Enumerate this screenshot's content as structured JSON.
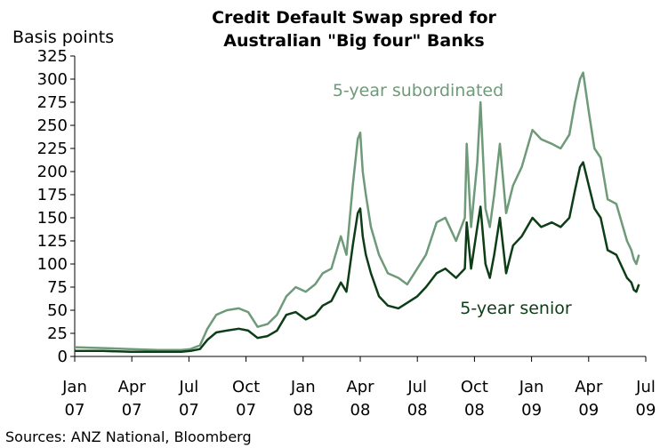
{
  "chart_data": {
    "type": "line",
    "title": [
      "Credit Default Swap spred for",
      "Australian \"Big four\" Banks"
    ],
    "ylabel": "Basis points",
    "ylim": [
      0,
      325
    ],
    "yticks": [
      "0",
      "25",
      "50",
      "75",
      "100",
      "125",
      "150",
      "175",
      "200",
      "225",
      "250",
      "275",
      "300",
      "325"
    ],
    "xlim": [
      "2007-01-01",
      "2009-07-01"
    ],
    "xticks": [
      {
        "top": "Jan",
        "bottom": "07"
      },
      {
        "top": "Apr",
        "bottom": "07"
      },
      {
        "top": "Jul",
        "bottom": "07"
      },
      {
        "top": "Oct",
        "bottom": "07"
      },
      {
        "top": "Jan",
        "bottom": "08"
      },
      {
        "top": "Apr",
        "bottom": "08"
      },
      {
        "top": "Jul",
        "bottom": "08"
      },
      {
        "top": "Oct",
        "bottom": "08"
      },
      {
        "top": "Jan",
        "bottom": "09"
      },
      {
        "top": "Apr",
        "bottom": "09"
      },
      {
        "top": "Jul",
        "bottom": "09"
      }
    ],
    "grid": false,
    "source": "Sources: ANZ National, Bloomberg",
    "series": [
      {
        "name": "5-year subordinated",
        "color": "#6e9a7a",
        "points": [
          [
            "2007-01-01",
            10
          ],
          [
            "2007-02-15",
            9
          ],
          [
            "2007-04-01",
            8
          ],
          [
            "2007-05-15",
            7
          ],
          [
            "2007-06-20",
            7
          ],
          [
            "2007-07-05",
            8
          ],
          [
            "2007-07-20",
            12
          ],
          [
            "2007-08-01",
            30
          ],
          [
            "2007-08-15",
            45
          ],
          [
            "2007-09-01",
            50
          ],
          [
            "2007-09-20",
            52
          ],
          [
            "2007-10-05",
            48
          ],
          [
            "2007-10-20",
            32
          ],
          [
            "2007-11-05",
            35
          ],
          [
            "2007-11-20",
            45
          ],
          [
            "2007-12-05",
            65
          ],
          [
            "2007-12-20",
            75
          ],
          [
            "2008-01-05",
            70
          ],
          [
            "2008-01-20",
            78
          ],
          [
            "2008-02-01",
            90
          ],
          [
            "2008-02-15",
            95
          ],
          [
            "2008-03-01",
            130
          ],
          [
            "2008-03-10",
            110
          ],
          [
            "2008-03-20",
            185
          ],
          [
            "2008-03-28",
            235
          ],
          [
            "2008-04-01",
            242
          ],
          [
            "2008-04-05",
            200
          ],
          [
            "2008-04-10",
            175
          ],
          [
            "2008-04-18",
            140
          ],
          [
            "2008-05-01",
            110
          ],
          [
            "2008-05-15",
            90
          ],
          [
            "2008-06-01",
            85
          ],
          [
            "2008-06-15",
            78
          ],
          [
            "2008-07-01",
            95
          ],
          [
            "2008-07-15",
            110
          ],
          [
            "2008-08-01",
            145
          ],
          [
            "2008-08-15",
            150
          ],
          [
            "2008-09-01",
            125
          ],
          [
            "2008-09-15",
            150
          ],
          [
            "2008-09-18",
            230
          ],
          [
            "2008-09-25",
            140
          ],
          [
            "2008-10-05",
            210
          ],
          [
            "2008-10-10",
            275
          ],
          [
            "2008-10-18",
            160
          ],
          [
            "2008-10-25",
            140
          ],
          [
            "2008-11-01",
            175
          ],
          [
            "2008-11-10",
            230
          ],
          [
            "2008-11-20",
            155
          ],
          [
            "2008-12-01",
            185
          ],
          [
            "2008-12-15",
            205
          ],
          [
            "2009-01-01",
            245
          ],
          [
            "2009-01-15",
            235
          ],
          [
            "2009-02-01",
            230
          ],
          [
            "2009-02-15",
            225
          ],
          [
            "2009-03-01",
            240
          ],
          [
            "2009-03-10",
            275
          ],
          [
            "2009-03-18",
            300
          ],
          [
            "2009-03-23",
            307
          ],
          [
            "2009-04-01",
            265
          ],
          [
            "2009-04-10",
            225
          ],
          [
            "2009-04-20",
            215
          ],
          [
            "2009-05-01",
            170
          ],
          [
            "2009-05-15",
            165
          ],
          [
            "2009-06-01",
            125
          ],
          [
            "2009-06-08",
            115
          ],
          [
            "2009-06-12",
            105
          ],
          [
            "2009-06-16",
            100
          ],
          [
            "2009-06-20",
            110
          ]
        ]
      },
      {
        "name": "5-year senior",
        "color": "#0d3d17",
        "points": [
          [
            "2007-01-01",
            6
          ],
          [
            "2007-02-15",
            6
          ],
          [
            "2007-04-01",
            5
          ],
          [
            "2007-05-15",
            5
          ],
          [
            "2007-06-20",
            5
          ],
          [
            "2007-07-05",
            6
          ],
          [
            "2007-07-20",
            8
          ],
          [
            "2007-08-01",
            18
          ],
          [
            "2007-08-15",
            26
          ],
          [
            "2007-09-01",
            28
          ],
          [
            "2007-09-20",
            30
          ],
          [
            "2007-10-05",
            28
          ],
          [
            "2007-10-20",
            20
          ],
          [
            "2007-11-05",
            22
          ],
          [
            "2007-11-20",
            28
          ],
          [
            "2007-12-05",
            45
          ],
          [
            "2007-12-20",
            48
          ],
          [
            "2008-01-05",
            40
          ],
          [
            "2008-01-20",
            45
          ],
          [
            "2008-02-01",
            55
          ],
          [
            "2008-02-15",
            60
          ],
          [
            "2008-03-01",
            80
          ],
          [
            "2008-03-10",
            70
          ],
          [
            "2008-03-20",
            120
          ],
          [
            "2008-03-28",
            155
          ],
          [
            "2008-04-01",
            160
          ],
          [
            "2008-04-05",
            130
          ],
          [
            "2008-04-10",
            110
          ],
          [
            "2008-04-18",
            90
          ],
          [
            "2008-05-01",
            65
          ],
          [
            "2008-05-15",
            55
          ],
          [
            "2008-06-01",
            52
          ],
          [
            "2008-06-15",
            58
          ],
          [
            "2008-07-01",
            65
          ],
          [
            "2008-07-15",
            75
          ],
          [
            "2008-08-01",
            90
          ],
          [
            "2008-08-15",
            95
          ],
          [
            "2008-09-01",
            85
          ],
          [
            "2008-09-15",
            95
          ],
          [
            "2008-09-18",
            145
          ],
          [
            "2008-09-25",
            95
          ],
          [
            "2008-10-05",
            140
          ],
          [
            "2008-10-10",
            162
          ],
          [
            "2008-10-18",
            100
          ],
          [
            "2008-10-25",
            85
          ],
          [
            "2008-11-01",
            110
          ],
          [
            "2008-11-10",
            150
          ],
          [
            "2008-11-20",
            90
          ],
          [
            "2008-12-01",
            120
          ],
          [
            "2008-12-15",
            130
          ],
          [
            "2009-01-01",
            150
          ],
          [
            "2009-01-15",
            140
          ],
          [
            "2009-02-01",
            145
          ],
          [
            "2009-02-15",
            140
          ],
          [
            "2009-03-01",
            150
          ],
          [
            "2009-03-10",
            180
          ],
          [
            "2009-03-18",
            205
          ],
          [
            "2009-03-23",
            210
          ],
          [
            "2009-04-01",
            185
          ],
          [
            "2009-04-10",
            160
          ],
          [
            "2009-04-20",
            150
          ],
          [
            "2009-05-01",
            115
          ],
          [
            "2009-05-15",
            110
          ],
          [
            "2009-06-01",
            85
          ],
          [
            "2009-06-08",
            80
          ],
          [
            "2009-06-12",
            72
          ],
          [
            "2009-06-16",
            70
          ],
          [
            "2009-06-20",
            78
          ]
        ]
      }
    ]
  }
}
